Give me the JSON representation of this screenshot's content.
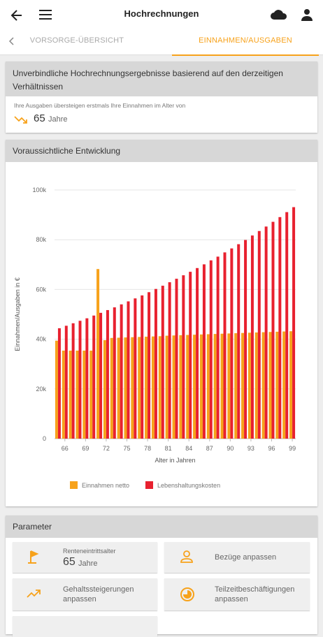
{
  "app_bar": {
    "title": "Hochrechnungen"
  },
  "tabs": {
    "left": "VORSORGE-ÜBERSICHT",
    "right": "EINNAHMEN/AUSGABEN"
  },
  "summary_card": {
    "header": "Unverbindliche Hochrechnungsergebnisse basierend auf den derzeitigen Verhältnissen",
    "caption": "Ihre Ausgaben übersteigen erstmals Ihre Einnahmen im Alter von",
    "age": "65",
    "unit": "Jahre"
  },
  "chart_card": {
    "header": "Voraussichtliche Entwicklung"
  },
  "chart_data": {
    "type": "bar",
    "x": [
      65,
      66,
      67,
      68,
      69,
      70,
      71,
      72,
      73,
      74,
      75,
      76,
      77,
      78,
      79,
      80,
      81,
      82,
      83,
      84,
      85,
      86,
      87,
      88,
      89,
      90,
      91,
      92,
      93,
      94,
      95,
      96,
      97,
      98,
      99
    ],
    "series": [
      {
        "name": "Einnahmen netto",
        "color": "#f7a21b",
        "values": [
          39400,
          35400,
          35400,
          35400,
          35400,
          35400,
          68200,
          39600,
          40500,
          40600,
          40700,
          40800,
          40900,
          41000,
          41100,
          41200,
          41400,
          41500,
          41600,
          41700,
          41800,
          41900,
          42000,
          42100,
          42200,
          42300,
          42400,
          42500,
          42600,
          42700,
          42800,
          42900,
          43000,
          43100,
          43200
        ]
      },
      {
        "name": "Lebenshaltungskosten",
        "color": "#e8212f",
        "values": [
          44400,
          45400,
          46400,
          47400,
          48400,
          49500,
          50600,
          51700,
          52800,
          54000,
          55200,
          56400,
          57600,
          58900,
          60200,
          61500,
          62900,
          64300,
          65700,
          67100,
          68600,
          70100,
          71700,
          73200,
          74900,
          76500,
          78200,
          79900,
          81700,
          83500,
          85300,
          87200,
          89100,
          91100,
          93100
        ]
      }
    ],
    "xlim": [
      64.5,
      99.5
    ],
    "xticks": [
      66,
      69,
      72,
      75,
      78,
      81,
      84,
      87,
      90,
      93,
      96,
      99
    ],
    "ylim": [
      0,
      100000
    ],
    "yticks": [
      0,
      {
        "value": 20000,
        "label": "20k"
      },
      {
        "value": 40000,
        "label": "40k"
      },
      {
        "value": 60000,
        "label": "60k"
      },
      {
        "value": 80000,
        "label": "80k"
      },
      {
        "value": 100000,
        "label": "100k"
      }
    ],
    "x_label": "Alter in Jahren",
    "y_label": "Einnahmen/Ausgaben in €",
    "grid": true,
    "legend": "bottom"
  },
  "parameter_card": {
    "header": "Parameter",
    "tiles": [
      {
        "label": "Renteneintrittsalter",
        "value": "65",
        "unit": "Jahre"
      },
      {
        "label": "Bezüge anpassen"
      },
      {
        "label": "Gehaltssteigerungen anpassen"
      },
      {
        "label": "Teilzeitbeschäftigungen anpassen"
      }
    ]
  }
}
